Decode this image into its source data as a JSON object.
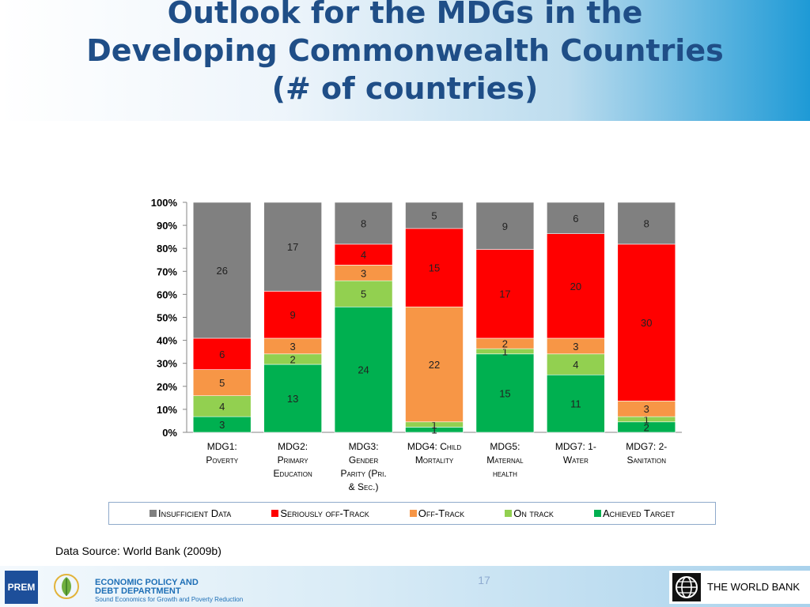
{
  "title": {
    "line1": "Outlook for the MDGs in the",
    "line2": "Developing Commonwealth Countries",
    "line3": "(# of countries)"
  },
  "chart_data": {
    "type": "bar",
    "stacked": "percent",
    "categories": [
      {
        "lines": [
          "MDG1:",
          "Poverty"
        ]
      },
      {
        "lines": [
          "MDG2:",
          "Primary",
          "Education"
        ]
      },
      {
        "lines": [
          "MDG3:",
          "Gender",
          "Parity (Pri.",
          "& Sec.)"
        ]
      },
      {
        "lines": [
          "MDG4: Child",
          "Mortality"
        ]
      },
      {
        "lines": [
          "MDG5:",
          "Maternal",
          "health"
        ]
      },
      {
        "lines": [
          "MDG7: 1-",
          "Water"
        ]
      },
      {
        "lines": [
          "MDG7: 2-",
          "Sanitation"
        ]
      }
    ],
    "series": [
      {
        "name": "Achieved Target",
        "color": "#00b050",
        "values": [
          3,
          13,
          24,
          1,
          15,
          11,
          2
        ]
      },
      {
        "name": "On track",
        "color": "#92d050",
        "values": [
          4,
          2,
          5,
          1,
          1,
          4,
          1
        ]
      },
      {
        "name": "Off-Track",
        "color": "#f79646",
        "values": [
          5,
          3,
          3,
          22,
          2,
          3,
          3
        ]
      },
      {
        "name": "Seriously off-Track",
        "color": "#ff0000",
        "values": [
          6,
          9,
          4,
          15,
          17,
          20,
          30
        ]
      },
      {
        "name": "Insufficient Data",
        "color": "#808080",
        "values": [
          26,
          17,
          8,
          5,
          9,
          6,
          8
        ]
      }
    ],
    "y_ticks": [
      "0%",
      "10%",
      "20%",
      "30%",
      "40%",
      "50%",
      "60%",
      "70%",
      "80%",
      "90%",
      "100%"
    ],
    "ylim": [
      0,
      100
    ],
    "legend_order": [
      "Insufficient Data",
      "Seriously off-Track",
      "Off-Track",
      "On track",
      "Achieved Target"
    ],
    "legend_position": "bottom"
  },
  "source": "Data Source: World Bank (2009b)",
  "footer": {
    "page_number": "17",
    "prem_logo": "PREM",
    "dept_line1": "ECONOMIC POLICY AND",
    "dept_line2": "DEBT DEPARTMENT",
    "dept_tagline": "Sound Economics for Growth and Poverty Reduction",
    "world_bank": "THE WORLD BANK"
  }
}
